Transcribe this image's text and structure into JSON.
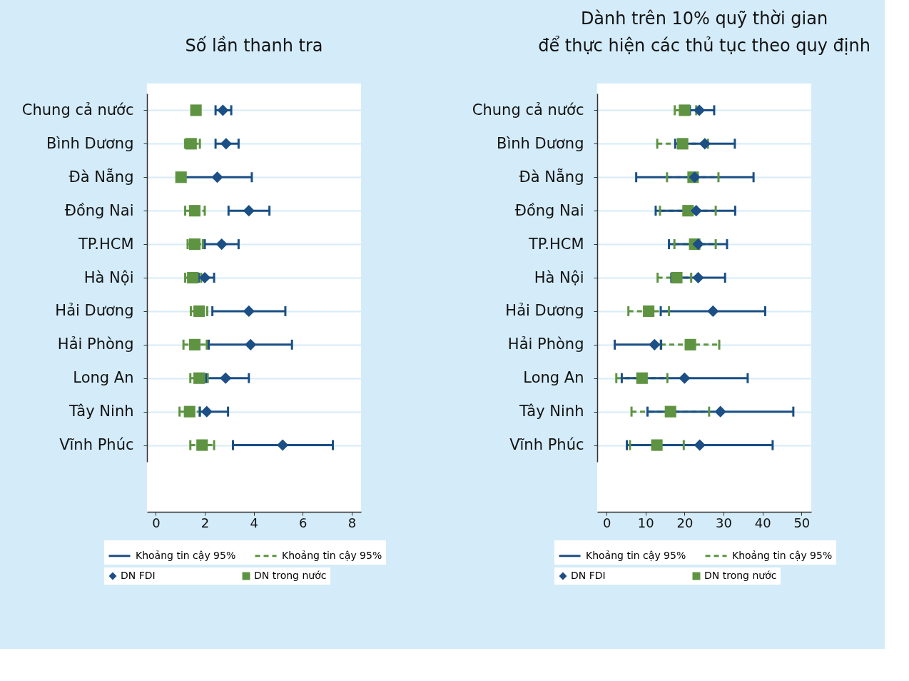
{
  "chart_data": [
    {
      "type": "scatter",
      "orientation": "horizontal",
      "title": "Số lần thanh tra",
      "categories": [
        "Chung cả nước",
        "Bình Dương",
        "Đà Nẵng",
        "Đồng Nai",
        "TP.HCM",
        "Hà Nội",
        "Hải Dương",
        "Hải Phòng",
        "Long An",
        "Tây Ninh",
        "Vĩnh Phúc"
      ],
      "xlim": [
        -0.36,
        8.38
      ],
      "xticks": [
        0,
        2,
        4,
        6,
        8
      ],
      "grid": "y",
      "legend": "bottom",
      "annotations": [
        "Khoảng tin cậy 95%",
        "Khoảng tin cậy 95%"
      ],
      "series": [
        {
          "name": "DN trong nước",
          "color": "#5e9441",
          "marker": "square",
          "line_style": "dashed",
          "values": [
            1.64,
            1.44,
            1.03,
            1.59,
            1.59,
            1.51,
            1.77,
            1.59,
            1.77,
            1.38,
            1.89
          ],
          "errors": [
            null,
            [
              1.2,
              1.8
            ],
            null,
            [
              1.2,
              2.0
            ],
            [
              1.3,
              1.92
            ],
            [
              1.2,
              1.85
            ],
            [
              1.43,
              2.1
            ],
            [
              1.13,
              2.08
            ],
            [
              1.41,
              2.12
            ],
            [
              0.97,
              1.79
            ],
            [
              1.41,
              2.38
            ]
          ]
        },
        {
          "name": "DN FDI",
          "color": "#1b4f85",
          "marker": "diamond",
          "line_style": "solid",
          "values": [
            2.74,
            2.87,
            2.51,
            3.8,
            2.69,
            2.0,
            3.8,
            3.87,
            2.85,
            2.08,
            5.18
          ],
          "errors": [
            [
              2.44,
              3.08
            ],
            [
              2.44,
              3.38
            ],
            [
              1.2,
              3.92
            ],
            [
              2.97,
              4.64
            ],
            [
              2.0,
              3.38
            ],
            [
              1.75,
              2.38
            ],
            [
              2.31,
              5.29
            ],
            [
              2.16,
              5.56
            ],
            [
              2.05,
              3.8
            ],
            [
              1.8,
              2.95
            ],
            [
              3.15,
              7.23
            ]
          ]
        }
      ]
    },
    {
      "type": "scatter",
      "orientation": "horizontal",
      "title": [
        "Dành trên 10% quỹ thời gian",
        "để thực hiện các thủ tục theo quy định"
      ],
      "categories": [
        "Chung cả nước",
        "Bình Dương",
        "Đà Nẵng",
        "Đồng Nai",
        "TP.HCM",
        "Hà Nội",
        "Hải Dương",
        "Hải Phòng",
        "Long An",
        "Tây Ninh",
        "Vĩnh Phúc"
      ],
      "xlim": [
        -2.4,
        52.5
      ],
      "xticks": [
        0,
        10,
        20,
        30,
        40,
        50
      ],
      "grid": "y",
      "legend": "bottom",
      "annotations": [
        "Khoảng tin cậy 95%",
        "Khoảng tin cậy 95%"
      ],
      "series": [
        {
          "name": "DN trong nước",
          "color": "#5e9441",
          "marker": "square",
          "line_style": "dashed",
          "values": [
            20.0,
            19.5,
            22.2,
            20.9,
            22.6,
            18.0,
            10.8,
            21.5,
            9.1,
            16.4,
            12.9
          ],
          "errors": [
            [
              17.5,
              23.0
            ],
            [
              13.0,
              26.0
            ],
            [
              15.5,
              28.7
            ],
            [
              13.7,
              28.0
            ],
            [
              17.4,
              28.0
            ],
            [
              13.1,
              21.7
            ],
            [
              5.6,
              16.0
            ],
            [
              13.9,
              28.9
            ],
            [
              2.5,
              15.6
            ],
            [
              6.4,
              26.3
            ],
            [
              6.0,
              19.8
            ]
          ]
        },
        {
          "name": "DN FDI",
          "color": "#1b4f85",
          "marker": "diamond",
          "line_style": "solid",
          "values": [
            23.8,
            25.2,
            22.6,
            23.0,
            23.5,
            23.5,
            27.3,
            12.3,
            20.0,
            29.2,
            23.9
          ],
          "errors": [
            [
              21.4,
              27.6
            ],
            [
              17.6,
              32.9
            ],
            [
              7.6,
              37.7
            ],
            [
              12.6,
              33.0
            ],
            [
              16.0,
              30.9
            ],
            [
              16.6,
              30.4
            ],
            [
              13.9,
              40.7
            ],
            [
              2.1,
              14.0
            ],
            [
              3.9,
              36.2
            ],
            [
              10.5,
              47.9
            ],
            [
              5.2,
              42.6
            ]
          ]
        }
      ]
    }
  ]
}
